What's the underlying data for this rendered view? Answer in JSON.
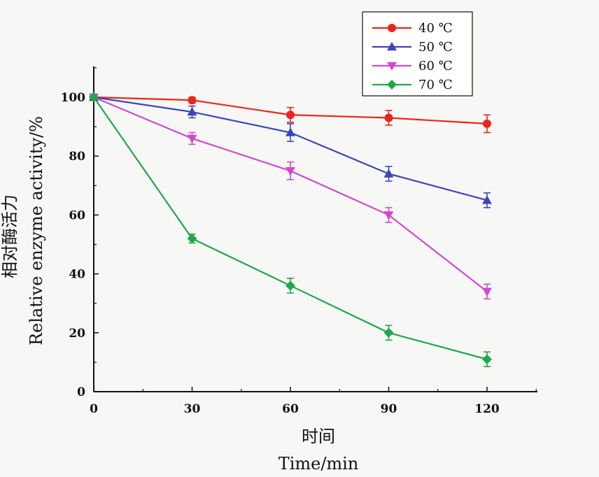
{
  "chart_data": {
    "type": "line",
    "x": [
      0,
      30,
      60,
      90,
      120
    ],
    "xlim": [
      0,
      135
    ],
    "ylim": [
      0,
      110
    ],
    "xticks": [
      "0",
      "30",
      "60",
      "90",
      "120"
    ],
    "yticks": [
      "0",
      "20",
      "40",
      "60",
      "80",
      "100"
    ],
    "xlabel_cn": "时间",
    "xlabel_en": "Time/min",
    "ylabel_cn": "相对酶活力",
    "ylabel_en": "Relative enzyme activity/%",
    "legend_position": "top-right",
    "grid": false,
    "series": [
      {
        "name": "40 ℃",
        "color": "#e8261f",
        "marker": "circle",
        "values": [
          100,
          99,
          94,
          93,
          91
        ],
        "errors": [
          0,
          1,
          2.5,
          2.5,
          3
        ]
      },
      {
        "name": "50 ℃",
        "color": "#3b47b5",
        "marker": "triangle-up",
        "values": [
          100,
          95,
          88,
          74,
          65
        ],
        "errors": [
          0,
          2,
          3,
          2.5,
          2.5
        ]
      },
      {
        "name": "60 ℃",
        "color": "#d04ad0",
        "marker": "triangle-down",
        "values": [
          100,
          86,
          75,
          60,
          34
        ],
        "errors": [
          0,
          2,
          3,
          2.5,
          2.5
        ]
      },
      {
        "name": "70 ℃",
        "color": "#1fa84a",
        "marker": "diamond",
        "values": [
          100,
          52,
          36,
          20,
          11
        ],
        "errors": [
          0,
          1.5,
          2.5,
          2.5,
          2.5
        ]
      }
    ]
  }
}
